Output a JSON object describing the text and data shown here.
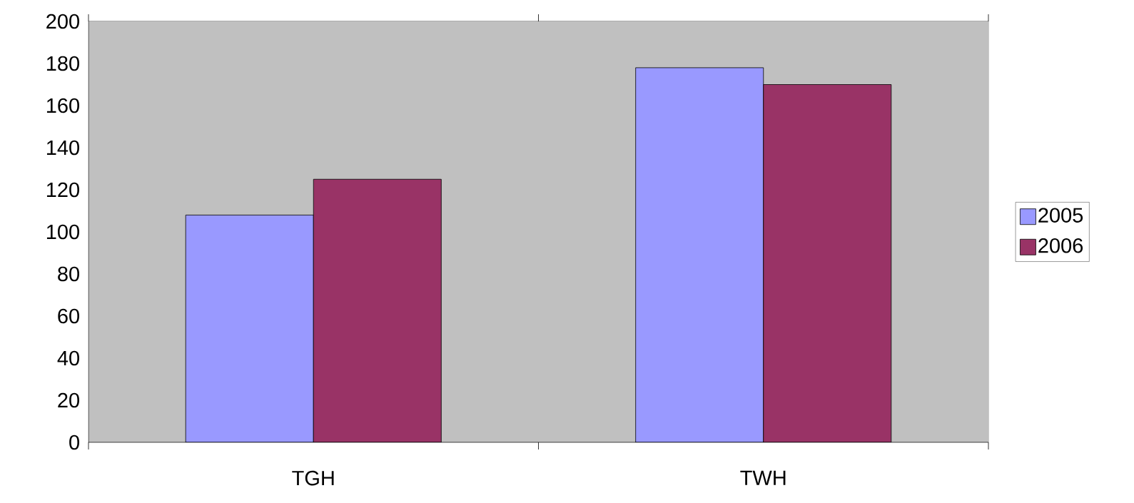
{
  "chart_data": {
    "type": "bar",
    "categories": [
      "TGH",
      "TWH"
    ],
    "series": [
      {
        "name": "2005",
        "color": "#9999ff",
        "values": [
          108,
          178
        ]
      },
      {
        "name": "2006",
        "color": "#993366",
        "values": [
          125,
          170
        ]
      }
    ],
    "ylim": [
      0,
      200
    ],
    "yticks": [
      0,
      20,
      40,
      60,
      80,
      100,
      120,
      140,
      160,
      180,
      200
    ],
    "grid": "y",
    "legend": "right"
  }
}
